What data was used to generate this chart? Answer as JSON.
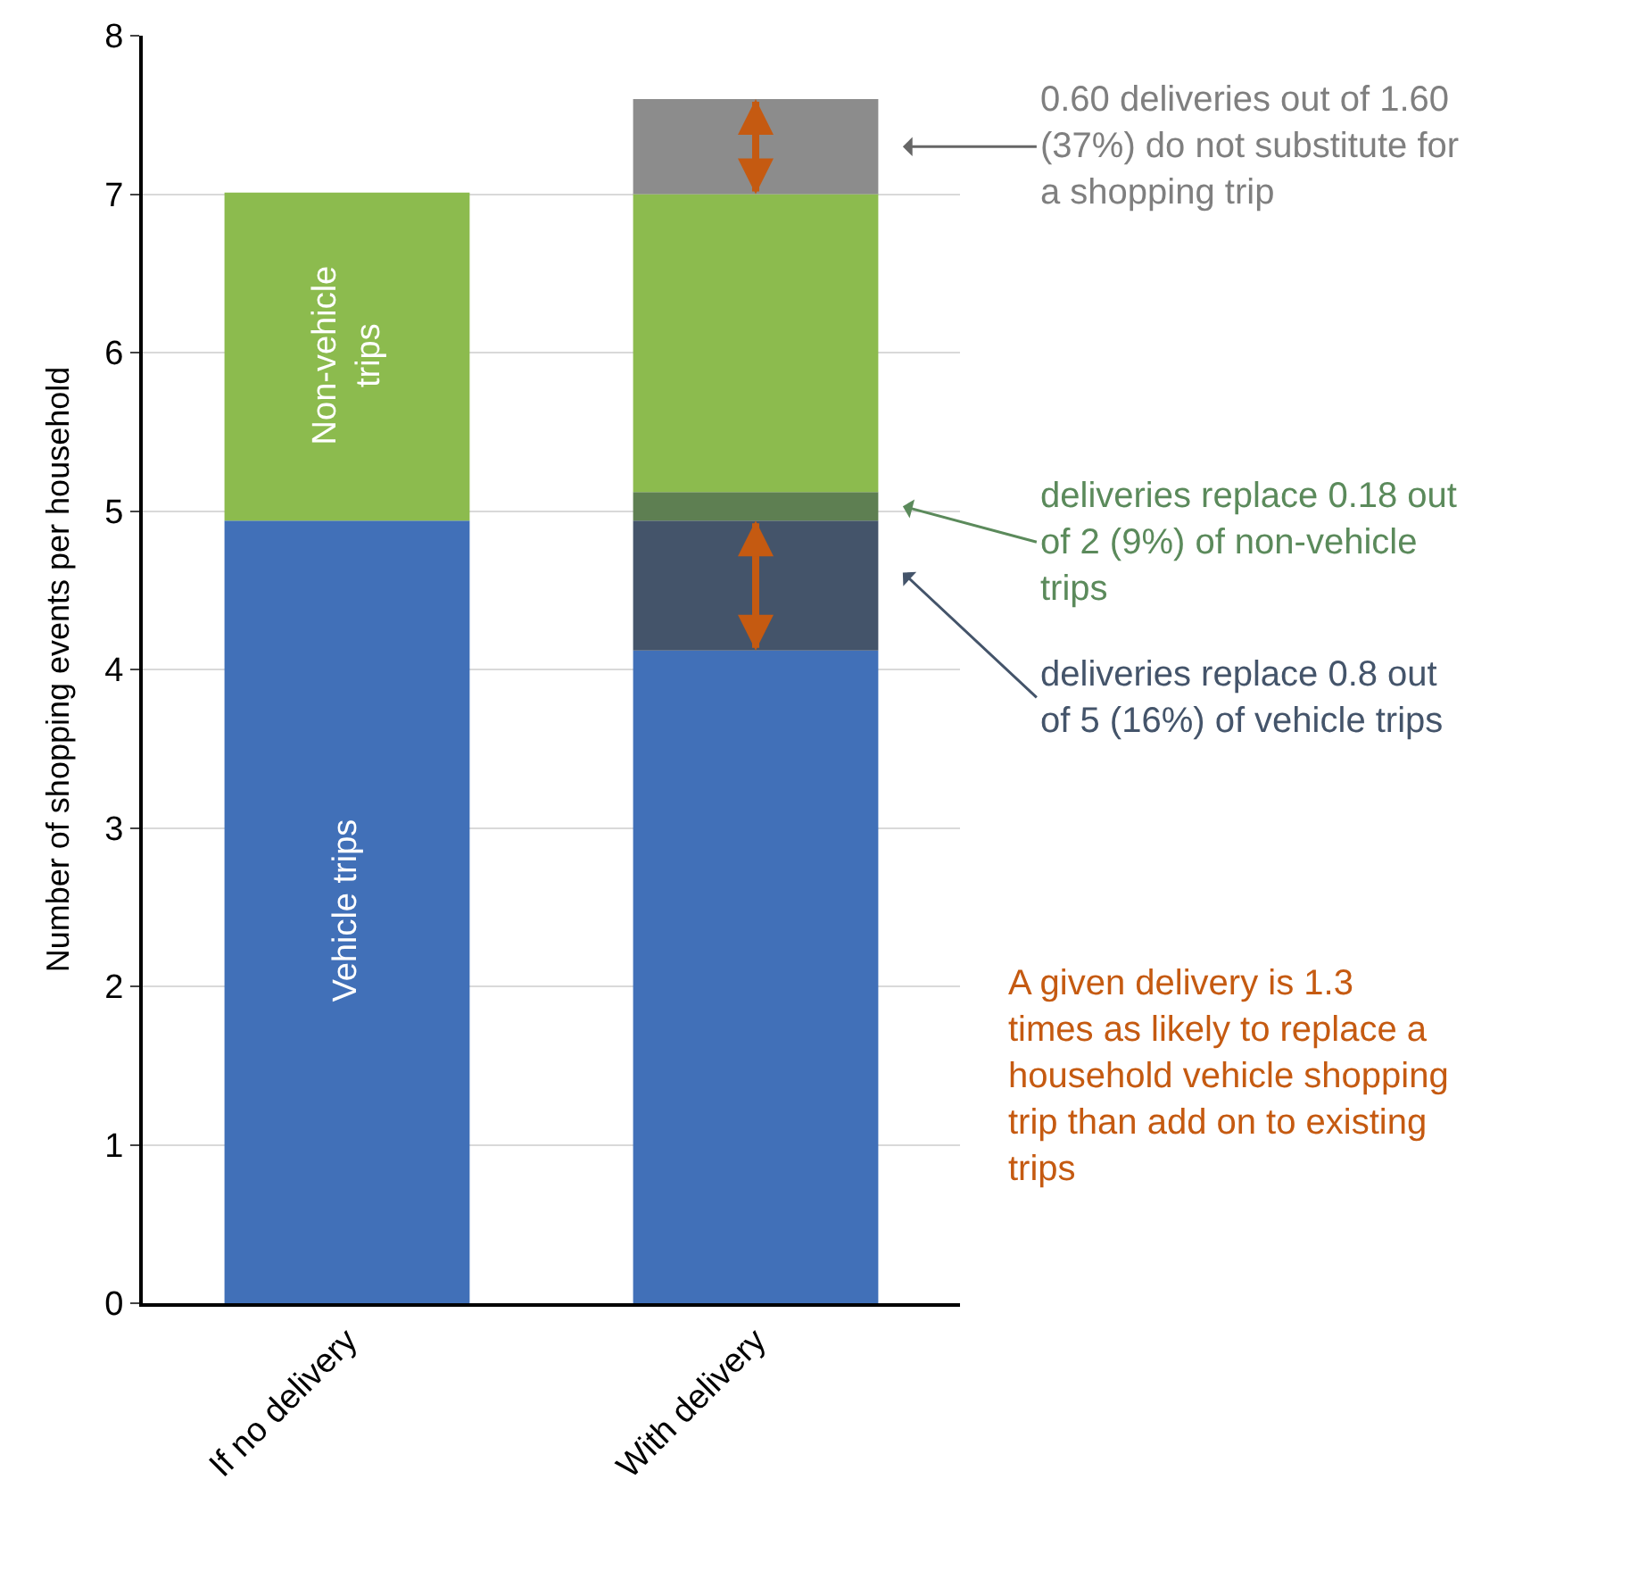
{
  "chart_data": {
    "type": "bar",
    "stacked": true,
    "ylabel": "Number of shopping events per household",
    "categories": [
      "If no delivery",
      "With delivery"
    ],
    "series": [
      {
        "name": "Vehicle trips",
        "color": "#4170b8",
        "values": [
          4.94,
          4.12
        ]
      },
      {
        "color": "#44546a",
        "values": [
          0,
          0.82
        ]
      },
      {
        "color": "#5e7f52",
        "values": [
          0,
          0.18
        ]
      },
      {
        "name": "Non-vehicle trips",
        "color": "#8cbb4e",
        "values": [
          2.07,
          1.88
        ]
      },
      {
        "color": "#8c8c8c",
        "values": [
          0,
          0.6
        ]
      }
    ],
    "ylim": [
      0,
      8
    ],
    "yticks": [
      0,
      1,
      2,
      3,
      4,
      5,
      6,
      7,
      8
    ],
    "grid": "y",
    "legend": false,
    "annotations": [
      "0.60 deliveries out of 1.60 (37%) do not substitute for a shopping trip",
      "deliveries replace 0.18 out of 2 (9%) of non-vehicle trips",
      "deliveries replace 0.8 out of 5 (16%) of vehicle trips",
      "A given delivery is 1.3 times as likely to replace a household vehicle shopping trip than add on to existing trips"
    ]
  }
}
